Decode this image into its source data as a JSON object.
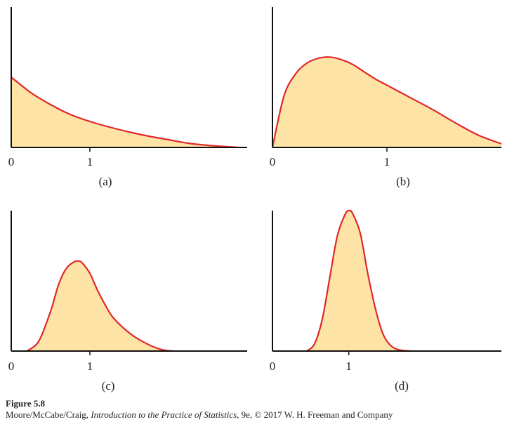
{
  "chart_data": [
    {
      "type": "area",
      "panel_label": "(a)",
      "x_ticks": [
        "0",
        "1"
      ],
      "xlim": [
        0,
        3
      ],
      "ylim": [
        0,
        2
      ],
      "grid": false,
      "x": [
        0,
        0.25,
        0.5,
        0.75,
        1,
        1.25,
        1.5,
        1.75,
        2,
        2.25,
        2.5,
        2.75,
        2.9
      ],
      "y": [
        1.0,
        0.78,
        0.61,
        0.47,
        0.37,
        0.29,
        0.22,
        0.16,
        0.11,
        0.06,
        0.03,
        0.01,
        0.0
      ],
      "line_color": "#e0282c",
      "fill_color": "#fde3a6"
    },
    {
      "type": "area",
      "panel_label": "(b)",
      "x_ticks": [
        "0",
        "1"
      ],
      "xlim": [
        0,
        2
      ],
      "ylim": [
        0,
        1.15
      ],
      "grid": false,
      "x": [
        0,
        0.1,
        0.2,
        0.3,
        0.4,
        0.5,
        0.6,
        0.7,
        0.8,
        0.9,
        1.0,
        1.2,
        1.4,
        1.6,
        1.8,
        2.0
      ],
      "y": [
        0.0,
        0.42,
        0.6,
        0.69,
        0.73,
        0.74,
        0.72,
        0.68,
        0.62,
        0.56,
        0.51,
        0.41,
        0.31,
        0.2,
        0.1,
        0.03
      ],
      "line_color": "#e0282c",
      "fill_color": "#fde3a6"
    },
    {
      "type": "area",
      "panel_label": "(c)",
      "x_ticks": [
        "0",
        "1"
      ],
      "xlim": [
        0,
        3
      ],
      "ylim": [
        0,
        1.7
      ],
      "grid": false,
      "x": [
        0.2,
        0.35,
        0.5,
        0.6,
        0.7,
        0.8,
        0.85,
        0.9,
        1.0,
        1.1,
        1.2,
        1.3,
        1.5,
        1.7,
        1.9,
        2.05
      ],
      "y": [
        0.0,
        0.12,
        0.48,
        0.8,
        1.0,
        1.08,
        1.09,
        1.07,
        0.94,
        0.73,
        0.55,
        0.4,
        0.22,
        0.1,
        0.02,
        0.0
      ],
      "line_color": "#e0282c",
      "fill_color": "#fde3a6"
    },
    {
      "type": "area",
      "panel_label": "(d)",
      "x_ticks": [
        "0",
        "1"
      ],
      "xlim": [
        0,
        3
      ],
      "ylim": [
        0,
        1.0
      ],
      "grid": false,
      "x": [
        0.45,
        0.55,
        0.65,
        0.75,
        0.85,
        0.95,
        1.0,
        1.05,
        1.15,
        1.25,
        1.35,
        1.45,
        1.55,
        1.65,
        1.8
      ],
      "y": [
        0.0,
        0.05,
        0.22,
        0.52,
        0.82,
        0.97,
        1.0,
        0.98,
        0.84,
        0.55,
        0.3,
        0.12,
        0.04,
        0.01,
        0.0
      ],
      "line_color": "#e0282c",
      "fill_color": "#fde3a6"
    }
  ],
  "caption": {
    "figure_number": "Figure 5.8",
    "credit_authors": "Moore/McCabe/Craig, ",
    "credit_book": "Introduction to the Practice of Statistics",
    "credit_rest": ", 9e, © 2017 W. H. Freeman and Company"
  }
}
